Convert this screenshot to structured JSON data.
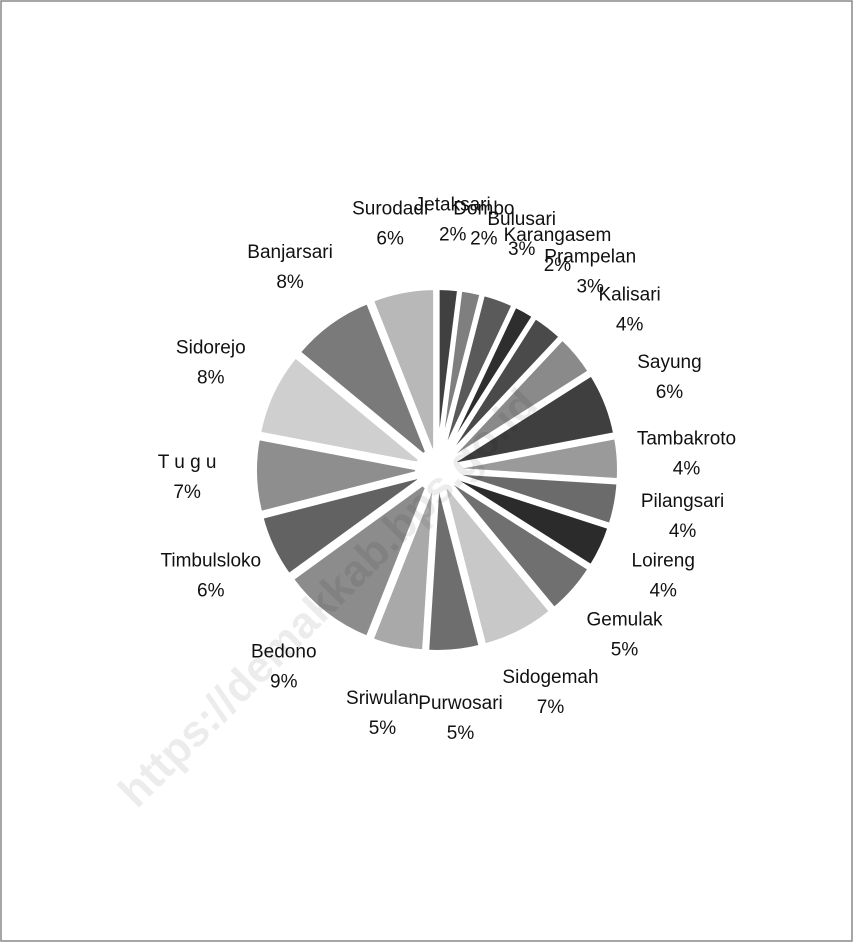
{
  "chart_data": {
    "type": "pie",
    "categories": [
      "Jetaksari",
      "Dombo",
      "Bulusari",
      "Karangasem",
      "Prampelan",
      "Kalisari",
      "Sayung",
      "Tambakroto",
      "Pilangsari",
      "Loireng",
      "Gemulak",
      "Sidogemah",
      "Purwosari",
      "Sriwulan",
      "Bedono",
      "Timbulsloko",
      "T u g u",
      "Sidorejo",
      "Banjarsari",
      "Surodadi"
    ],
    "values": [
      2,
      2,
      3,
      2,
      3,
      4,
      6,
      4,
      4,
      4,
      5,
      7,
      5,
      5,
      9,
      6,
      7,
      8,
      8,
      6
    ],
    "value_labels": [
      "2%",
      "2%",
      "3%",
      "2%",
      "3%",
      "4%",
      "6%",
      "4%",
      "4%",
      "4%",
      "5%",
      "7%",
      "5%",
      "5%",
      "9%",
      "6%",
      "7%",
      "8%",
      "8%",
      "6%"
    ],
    "colors": [
      "#404040",
      "#7f7f7f",
      "#5a5a5a",
      "#2e2e2e",
      "#4a4a4a",
      "#8a8a8a",
      "#3f3f3f",
      "#9a9a9a",
      "#6b6b6b",
      "#2b2b2b",
      "#707070",
      "#c8c8c8",
      "#6e6e6e",
      "#a9a9a9",
      "#8c8c8c",
      "#626262",
      "#8e8e8e",
      "#cfcfcf",
      "#7a7a7a",
      "#b8b8b8"
    ],
    "watermark": "https://demakkab.bps.go.id"
  }
}
